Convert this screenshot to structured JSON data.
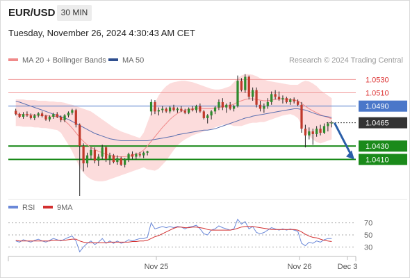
{
  "header": {
    "symbol": "EUR/USD",
    "timeframe": "30 MIN",
    "datetime": "Tuesday, November 26, 2024 4:30:43 AM CET"
  },
  "legend": {
    "items": [
      {
        "label": "MA 20 + Bollinger Bands",
        "color": "#f08a8a"
      },
      {
        "label": "MA 50",
        "color": "#2f4f8f"
      }
    ],
    "credit": "Research © 2024 Trading Central"
  },
  "colors": {
    "up": "#2e8b2e",
    "down": "#c0392b",
    "band": "#fcd6d6",
    "ma20": "#f08a8a",
    "ma50": "#5a6fb0",
    "resistance": "#f19a9a",
    "pivot": "#4a77c9",
    "support": "#1a8a1a",
    "arrow": "#2a5ea8",
    "rsi": "#6a88d8",
    "rsi_ma": "#d32f2f"
  },
  "chart_data": [
    {
      "type": "candlestick",
      "title": "EUR/USD",
      "timeframe": "30 MIN",
      "ylim": [
        1.0355,
        1.0545
      ],
      "x_ticks": [
        "Nov 25",
        "Nov 26",
        "Dec 3"
      ],
      "levels": [
        {
          "value": 1.053,
          "label": "1.0530",
          "kind": "resistance"
        },
        {
          "value": 1.051,
          "label": "1.0510",
          "kind": "resistance"
        },
        {
          "value": 1.049,
          "label": "1.0490",
          "kind": "pivot"
        },
        {
          "value": 1.0465,
          "label": "1.0465",
          "kind": "last"
        },
        {
          "value": 1.043,
          "label": "1.0430",
          "kind": "support"
        },
        {
          "value": 1.041,
          "label": "1.0410",
          "kind": "support"
        }
      ],
      "forecast_arrow": {
        "from": 1.0465,
        "to": 1.041
      },
      "candles": [
        [
          1.0483,
          1.0486,
          1.0476,
          1.0478
        ],
        [
          1.0478,
          1.048,
          1.0472,
          1.0474
        ],
        [
          1.0474,
          1.0481,
          1.0471,
          1.0478
        ],
        [
          1.0478,
          1.0482,
          1.0474,
          1.0476
        ],
        [
          1.0476,
          1.0479,
          1.047,
          1.0472
        ],
        [
          1.0472,
          1.0478,
          1.0469,
          1.0476
        ],
        [
          1.0476,
          1.0481,
          1.0473,
          1.0479
        ],
        [
          1.0479,
          1.0482,
          1.0473,
          1.0475
        ],
        [
          1.0475,
          1.0477,
          1.0468,
          1.047
        ],
        [
          1.047,
          1.0476,
          1.0467,
          1.0474
        ],
        [
          1.0474,
          1.048,
          1.0471,
          1.0478
        ],
        [
          1.0478,
          1.0481,
          1.0472,
          1.0474
        ],
        [
          1.0474,
          1.0476,
          1.0466,
          1.0469
        ],
        [
          1.0469,
          1.0478,
          1.0466,
          1.0476
        ],
        [
          1.0476,
          1.0482,
          1.0473,
          1.048
        ],
        [
          1.048,
          1.0486,
          1.0477,
          1.0484
        ],
        [
          1.0484,
          1.0486,
          1.0458,
          1.0462
        ],
        [
          1.0462,
          1.0464,
          1.0355,
          1.043
        ],
        [
          1.043,
          1.0434,
          1.0392,
          1.0404
        ],
        [
          1.0404,
          1.042,
          1.0398,
          1.0416
        ],
        [
          1.0416,
          1.0428,
          1.041,
          1.0424
        ],
        [
          1.0424,
          1.0428,
          1.0404,
          1.0408
        ],
        [
          1.0408,
          1.0418,
          1.04,
          1.0414
        ],
        [
          1.0414,
          1.0432,
          1.041,
          1.0428
        ],
        [
          1.0428,
          1.043,
          1.0406,
          1.041
        ],
        [
          1.041,
          1.042,
          1.0402,
          1.0416
        ],
        [
          1.0416,
          1.0418,
          1.0404,
          1.0406
        ],
        [
          1.0406,
          1.0416,
          1.0402,
          1.0412
        ],
        [
          1.0412,
          1.0414,
          1.04,
          1.0402
        ],
        [
          1.0402,
          1.0412,
          1.0398,
          1.041
        ],
        [
          1.041,
          1.042,
          1.0406,
          1.0418
        ],
        [
          1.0418,
          1.0422,
          1.041,
          1.0414
        ],
        [
          1.0414,
          1.042,
          1.041,
          1.0418
        ],
        [
          1.0418,
          1.0421,
          1.0413,
          1.0416
        ],
        [
          1.0416,
          1.0422,
          1.0412,
          1.042
        ],
        [
          1.042,
          1.0423,
          1.0416,
          1.0422
        ],
        [
          1.0482,
          1.05,
          1.0476,
          1.0496
        ],
        [
          1.0496,
          1.0499,
          1.0478,
          1.0482
        ],
        [
          1.0482,
          1.0488,
          1.0476,
          1.0484
        ],
        [
          1.0484,
          1.049,
          1.048,
          1.0486
        ],
        [
          1.0486,
          1.0488,
          1.048,
          1.0482
        ],
        [
          1.0482,
          1.049,
          1.0479,
          1.0488
        ],
        [
          1.0488,
          1.0492,
          1.0482,
          1.0484
        ],
        [
          1.0484,
          1.0488,
          1.048,
          1.0486
        ],
        [
          1.0486,
          1.049,
          1.0481,
          1.0483
        ],
        [
          1.0483,
          1.0486,
          1.0478,
          1.048
        ],
        [
          1.048,
          1.0488,
          1.0478,
          1.0486
        ],
        [
          1.0486,
          1.049,
          1.0482,
          1.0484
        ],
        [
          1.0484,
          1.0492,
          1.048,
          1.049
        ],
        [
          1.049,
          1.0494,
          1.048,
          1.0482
        ],
        [
          1.0482,
          1.0484,
          1.047,
          1.0472
        ],
        [
          1.0472,
          1.0478,
          1.0464,
          1.0476
        ],
        [
          1.0476,
          1.0484,
          1.047,
          1.0482
        ],
        [
          1.0482,
          1.049,
          1.0478,
          1.0488
        ],
        [
          1.0488,
          1.05,
          1.0484,
          1.0496
        ],
        [
          1.0496,
          1.0502,
          1.0484,
          1.0488
        ],
        [
          1.0488,
          1.0494,
          1.048,
          1.0492
        ],
        [
          1.0492,
          1.0496,
          1.0484,
          1.0486
        ],
        [
          1.0486,
          1.0492,
          1.0482,
          1.049
        ],
        [
          1.049,
          1.0536,
          1.0488,
          1.0528
        ],
        [
          1.0528,
          1.0532,
          1.0512,
          1.0514
        ],
        [
          1.0514,
          1.0538,
          1.051,
          1.0534
        ],
        [
          1.0534,
          1.0536,
          1.05,
          1.0504
        ],
        [
          1.0504,
          1.0518,
          1.0498,
          1.0514
        ],
        [
          1.0514,
          1.0518,
          1.0488,
          1.0492
        ],
        [
          1.0492,
          1.0498,
          1.0482,
          1.0486
        ],
        [
          1.0486,
          1.0494,
          1.048,
          1.049
        ],
        [
          1.049,
          1.0502,
          1.0486,
          1.0496
        ],
        [
          1.0496,
          1.0512,
          1.0492,
          1.0508
        ],
        [
          1.0508,
          1.0514,
          1.05,
          1.0504
        ],
        [
          1.0504,
          1.0512,
          1.0498,
          1.05
        ],
        [
          1.05,
          1.0506,
          1.0494,
          1.0502
        ],
        [
          1.0502,
          1.0504,
          1.0494,
          1.0496
        ],
        [
          1.0496,
          1.0502,
          1.0492,
          1.05
        ],
        [
          1.05,
          1.0503,
          1.0494,
          1.0497
        ],
        [
          1.0497,
          1.05,
          1.049,
          1.0492
        ],
        [
          1.0492,
          1.0496,
          1.045,
          1.0456
        ],
        [
          1.0456,
          1.0462,
          1.0428,
          1.0446
        ],
        [
          1.0446,
          1.0458,
          1.044,
          1.0452
        ],
        [
          1.0452,
          1.0456,
          1.0432,
          1.0448
        ],
        [
          1.0448,
          1.046,
          1.0444,
          1.0456
        ],
        [
          1.0456,
          1.0462,
          1.0446,
          1.045
        ],
        [
          1.045,
          1.0464,
          1.0448,
          1.046
        ],
        [
          1.046,
          1.0466,
          1.0452,
          1.0464
        ],
        [
          1.0464,
          1.0468,
          1.0458,
          1.0465
        ]
      ],
      "ma20": [
        1.0478,
        1.0478,
        1.0477,
        1.0477,
        1.0477,
        1.0477,
        1.0476,
        1.0476,
        1.0476,
        1.0475,
        1.0475,
        1.0474,
        1.0472,
        1.0468,
        1.0463,
        1.0457,
        1.045,
        1.0443,
        1.0437,
        1.0432,
        1.0428,
        1.0425,
        1.0422,
        1.042,
        1.0418,
        1.0416,
        1.0415,
        1.0414,
        1.0414,
        1.0414,
        1.0415,
        1.0416,
        1.0418,
        1.042,
        1.0424,
        1.043,
        1.0437,
        1.0444,
        1.0451,
        1.0458,
        1.0464,
        1.047,
        1.0475,
        1.0479,
        1.0482,
        1.0484,
        1.0485,
        1.0486,
        1.0487,
        1.0487,
        1.0486,
        1.0486,
        1.0486,
        1.0487,
        1.0488,
        1.0489,
        1.049,
        1.0491,
        1.0493,
        1.0496,
        1.0498,
        1.05,
        1.0501,
        1.0501,
        1.05,
        1.0499,
        1.0498,
        1.0498,
        1.0499,
        1.05,
        1.0501,
        1.0501,
        1.05,
        1.05,
        1.0499,
        1.0498,
        1.0494,
        1.049,
        1.0486,
        1.0483,
        1.048,
        1.0477,
        1.0475,
        1.0473,
        1.0471
      ],
      "ma50": [
        1.0497,
        1.0496,
        1.0494,
        1.0492,
        1.049,
        1.0488,
        1.0486,
        1.0484,
        1.0482,
        1.048,
        1.0478,
        1.0476,
        1.0474,
        1.0472,
        1.047,
        1.0467,
        1.0464,
        1.0461,
        1.0458,
        1.0455,
        1.0452,
        1.0449,
        1.0447,
        1.0445,
        1.0443,
        1.0441,
        1.044,
        1.0439,
        1.0438,
        1.0438,
        1.0438,
        1.0438,
        1.0438,
        1.0438,
        1.0438,
        1.0438,
        1.0439,
        1.044,
        1.0441,
        1.0442,
        1.0443,
        1.0444,
        1.0445,
        1.0447,
        1.0448,
        1.0449,
        1.045,
        1.0451,
        1.0452,
        1.0453,
        1.0454,
        1.0454,
        1.0455,
        1.0456,
        1.0458,
        1.046,
        1.0462,
        1.0464,
        1.0466,
        1.0468,
        1.047,
        1.0472,
        1.0473,
        1.0475,
        1.0476,
        1.0477,
        1.0478,
        1.0479,
        1.048,
        1.0481,
        1.0482,
        1.0483,
        1.0484,
        1.0485,
        1.0486,
        1.0486,
        1.0485,
        1.0484,
        1.0482,
        1.048,
        1.0478,
        1.0476,
        1.0475,
        1.0474,
        1.0473
      ],
      "bb_upper": [
        1.05,
        1.05,
        1.05,
        1.0499,
        1.0499,
        1.0499,
        1.0498,
        1.0498,
        1.0498,
        1.0497,
        1.0497,
        1.0496,
        1.0496,
        1.0495,
        1.0493,
        1.0492,
        1.049,
        1.0488,
        1.0486,
        1.0484,
        1.0482,
        1.0478,
        1.0474,
        1.047,
        1.0466,
        1.0462,
        1.0458,
        1.0455,
        1.0452,
        1.045,
        1.0448,
        1.0446,
        1.0444,
        1.0442,
        1.045,
        1.0465,
        1.048,
        1.0495,
        1.0506,
        1.0514,
        1.052,
        1.0524,
        1.0526,
        1.0527,
        1.0528,
        1.0528,
        1.0527,
        1.0526,
        1.0524,
        1.0522,
        1.052,
        1.0518,
        1.0516,
        1.0515,
        1.0515,
        1.0516,
        1.0518,
        1.052,
        1.0526,
        1.0532,
        1.0536,
        1.0538,
        1.0538,
        1.0537,
        1.0535,
        1.0532,
        1.053,
        1.0528,
        1.0527,
        1.0526,
        1.0525,
        1.0524,
        1.0523,
        1.0522,
        1.0522,
        1.0522,
        1.0526,
        1.0528,
        1.0527,
        1.0524,
        1.052,
        1.0514,
        1.051,
        1.0506,
        1.0502
      ],
      "bb_lower": [
        1.046,
        1.046,
        1.0459,
        1.0459,
        1.0459,
        1.0458,
        1.0458,
        1.0457,
        1.0457,
        1.0456,
        1.0455,
        1.0454,
        1.045,
        1.0441,
        1.0432,
        1.0422,
        1.041,
        1.0398,
        1.039,
        1.0384,
        1.038,
        1.0378,
        1.0377,
        1.0377,
        1.0378,
        1.038,
        1.0382,
        1.0384,
        1.0386,
        1.0388,
        1.039,
        1.0392,
        1.0394,
        1.0396,
        1.0398,
        1.0395,
        1.0394,
        1.0393,
        1.0396,
        1.0402,
        1.0408,
        1.0416,
        1.0424,
        1.0431,
        1.0436,
        1.044,
        1.0443,
        1.0446,
        1.0448,
        1.045,
        1.0452,
        1.0454,
        1.0456,
        1.0458,
        1.046,
        1.0462,
        1.0462,
        1.0462,
        1.046,
        1.046,
        1.046,
        1.0462,
        1.0464,
        1.0465,
        1.0465,
        1.0466,
        1.0466,
        1.0468,
        1.047,
        1.0472,
        1.0474,
        1.0476,
        1.0477,
        1.0478,
        1.0476,
        1.0472,
        1.0462,
        1.0452,
        1.0445,
        1.044,
        1.0436,
        1.0434,
        1.0436,
        1.0438,
        1.044
      ]
    },
    {
      "type": "line",
      "title": "RSI",
      "ylim": [
        20,
        80
      ],
      "y_ticks": [
        70,
        50,
        30
      ],
      "series": [
        {
          "name": "RSI",
          "values": [
            40,
            38,
            42,
            40,
            38,
            41,
            43,
            40,
            38,
            41,
            44,
            42,
            40,
            43,
            46,
            48,
            40,
            22,
            30,
            36,
            40,
            34,
            38,
            44,
            36,
            40,
            36,
            40,
            36,
            38,
            42,
            40,
            42,
            44,
            44,
            46,
            70,
            60,
            62,
            64,
            62,
            64,
            62,
            64,
            63,
            60,
            63,
            64,
            66,
            60,
            52,
            50,
            58,
            60,
            65,
            62,
            60,
            58,
            60,
            76,
            68,
            72,
            60,
            64,
            54,
            52,
            54,
            58,
            62,
            60,
            58,
            60,
            58,
            60,
            58,
            56,
            36,
            32,
            38,
            36,
            40,
            38,
            42,
            44,
            44
          ]
        },
        {
          "name": "9MA",
          "values": [
            41,
            40,
            40,
            40,
            40,
            40,
            40,
            40,
            40,
            40,
            41,
            41,
            41,
            41,
            42,
            43,
            43,
            40,
            38,
            37,
            37,
            37,
            37,
            37,
            37,
            38,
            38,
            38,
            38,
            38,
            38,
            39,
            39,
            40,
            40,
            41,
            44,
            47,
            49,
            52,
            55,
            58,
            61,
            63,
            63,
            62,
            62,
            63,
            63,
            62,
            61,
            59,
            58,
            58,
            58,
            58,
            58,
            58,
            59,
            61,
            63,
            64,
            64,
            64,
            63,
            62,
            61,
            60,
            59,
            59,
            59,
            59,
            59,
            59,
            59,
            58,
            55,
            51,
            48,
            46,
            45,
            43,
            41,
            40,
            39
          ]
        }
      ]
    }
  ]
}
